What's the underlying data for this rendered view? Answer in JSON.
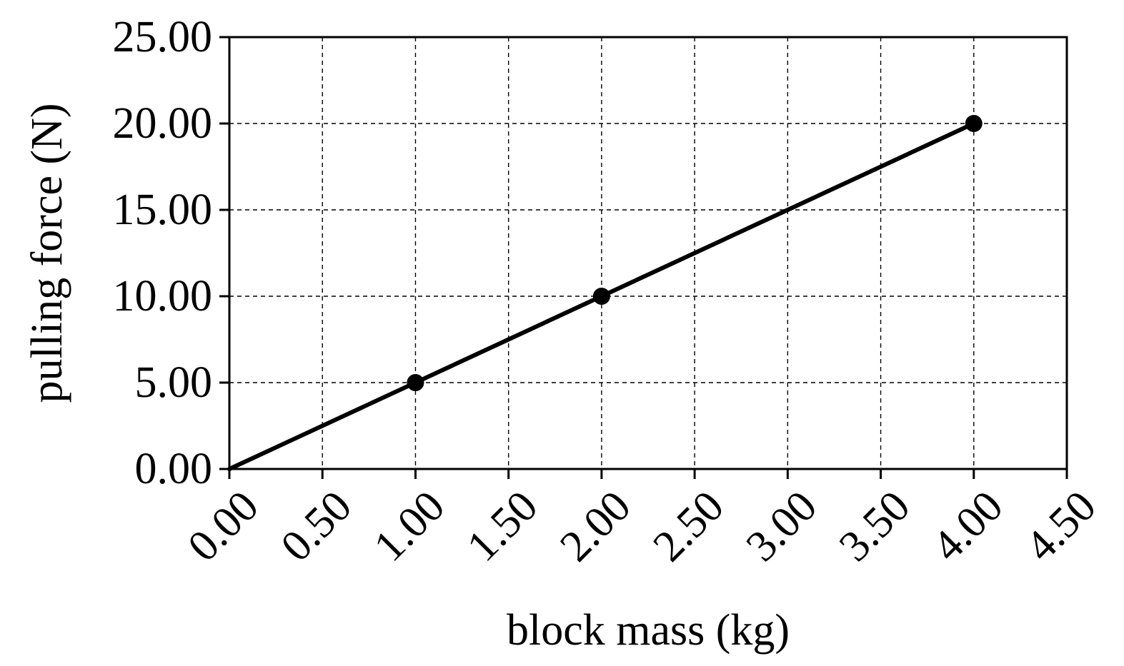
{
  "chart_data": {
    "type": "line",
    "title": "",
    "xlabel": "block mass (kg)",
    "ylabel": "pulling force (N)",
    "xlim": [
      0,
      4.5
    ],
    "ylim": [
      0,
      25
    ],
    "x_ticks": [
      0,
      0.5,
      1,
      1.5,
      2,
      2.5,
      3,
      3.5,
      4,
      4.5
    ],
    "y_ticks": [
      0,
      5,
      10,
      15,
      20,
      25
    ],
    "x_tick_labels": [
      "0.00",
      "0.50",
      "1.00",
      "1.50",
      "2.00",
      "2.50",
      "3.00",
      "3.50",
      "4.00",
      "4.50"
    ],
    "y_tick_labels": [
      "0.00",
      "5.00",
      "10.00",
      "15.00",
      "20.00",
      "25.00"
    ],
    "grid": true,
    "series": [
      {
        "line": {
          "x": [
            0,
            4
          ],
          "y": [
            0,
            20
          ]
        },
        "points": {
          "x": [
            1,
            2,
            4
          ],
          "y": [
            5,
            10,
            20
          ]
        },
        "color": "#000000"
      }
    ]
  }
}
